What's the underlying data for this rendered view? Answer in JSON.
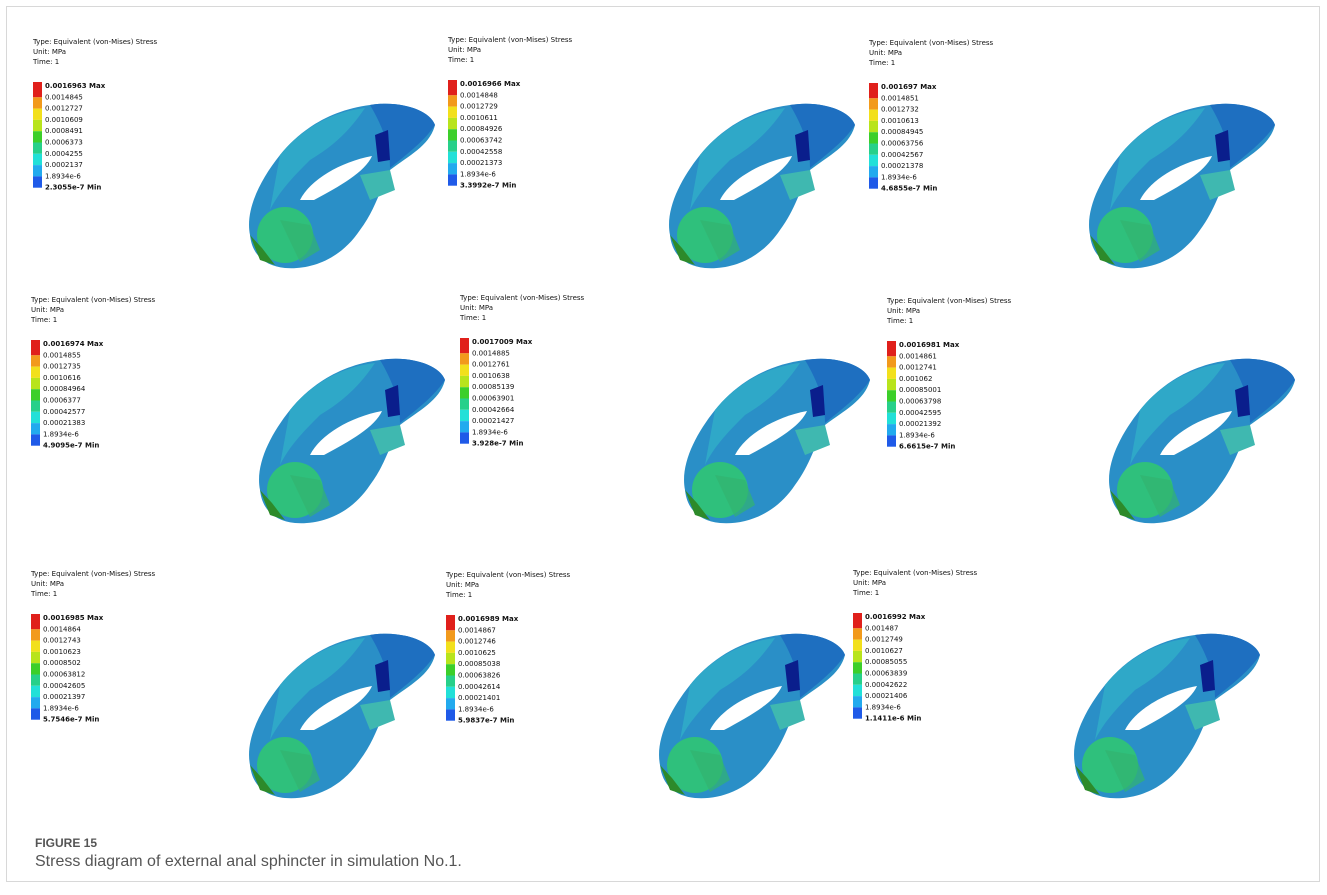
{
  "figure": {
    "label": "FIGURE 15",
    "caption": "Stress diagram of external anal sphincter in simulation No.1.",
    "panels": [
      {
        "type": "Type: Equivalent (von-Mises) Stress",
        "unit": "Unit: MPa",
        "time": "Time: 1",
        "labels": [
          "0.0016963 Max",
          "0.0014845",
          "0.0012727",
          "0.0010609",
          "0.0008491",
          "0.0006373",
          "0.0004255",
          "0.0002137",
          "1.8934e-6",
          "2.3055e-7 Min"
        ]
      },
      {
        "type": "Type: Equivalent (von-Mises) Stress",
        "unit": "Unit: MPa",
        "time": "Time: 1",
        "labels": [
          "0.0016966 Max",
          "0.0014848",
          "0.0012729",
          "0.0010611",
          "0.00084926",
          "0.00063742",
          "0.00042558",
          "0.00021373",
          "1.8934e-6",
          "3.3992e-7 Min"
        ]
      },
      {
        "type": "Type: Equivalent (von-Mises) Stress",
        "unit": "Unit: MPa",
        "time": "Time: 1",
        "labels": [
          "0.001697 Max",
          "0.0014851",
          "0.0012732",
          "0.0010613",
          "0.00084945",
          "0.00063756",
          "0.00042567",
          "0.00021378",
          "1.8934e-6",
          "4.6855e-7 Min"
        ]
      },
      {
        "type": "Type: Equivalent (von-Mises) Stress",
        "unit": "Unit: MPa",
        "time": "Time: 1",
        "labels": [
          "0.0016974 Max",
          "0.0014855",
          "0.0012735",
          "0.0010616",
          "0.00084964",
          "0.0006377",
          "0.00042577",
          "0.00021383",
          "1.8934e-6",
          "4.9095e-7 Min"
        ]
      },
      {
        "type": "Type: Equivalent (von-Mises) Stress",
        "unit": "Unit: MPa",
        "time": "Time: 1",
        "labels": [
          "0.0017009 Max",
          "0.0014885",
          "0.0012761",
          "0.0010638",
          "0.00085139",
          "0.00063901",
          "0.00042664",
          "0.00021427",
          "1.8934e-6",
          "3.928e-7 Min"
        ]
      },
      {
        "type": "Type: Equivalent (von-Mises) Stress",
        "unit": "Unit: MPa",
        "time": "Time: 1",
        "labels": [
          "0.0016981 Max",
          "0.0014861",
          "0.0012741",
          "0.001062",
          "0.00085001",
          "0.00063798",
          "0.00042595",
          "0.00021392",
          "1.8934e-6",
          "6.6615e-7 Min"
        ]
      },
      {
        "type": "Type: Equivalent (von-Mises) Stress",
        "unit": "Unit: MPa",
        "time": "Time: 1",
        "labels": [
          "0.0016985 Max",
          "0.0014864",
          "0.0012743",
          "0.0010623",
          "0.0008502",
          "0.00063812",
          "0.00042605",
          "0.00021397",
          "1.8934e-6",
          "5.7546e-7 Min"
        ]
      },
      {
        "type": "Type: Equivalent (von-Mises) Stress",
        "unit": "Unit: MPa",
        "time": "Time: 1",
        "labels": [
          "0.0016989 Max",
          "0.0014867",
          "0.0012746",
          "0.0010625",
          "0.00085038",
          "0.00063826",
          "0.00042614",
          "0.00021401",
          "1.8934e-6",
          "5.9837e-7 Min"
        ]
      },
      {
        "type": "Type: Equivalent (von-Mises) Stress",
        "unit": "Unit: MPa",
        "time": "Time: 1",
        "labels": [
          "0.0016992 Max",
          "0.001487",
          "0.0012749",
          "0.0010627",
          "0.00085055",
          "0.00063839",
          "0.00042622",
          "0.00021406",
          "1.8934e-6",
          "1.1411e-6 Min"
        ]
      }
    ]
  }
}
